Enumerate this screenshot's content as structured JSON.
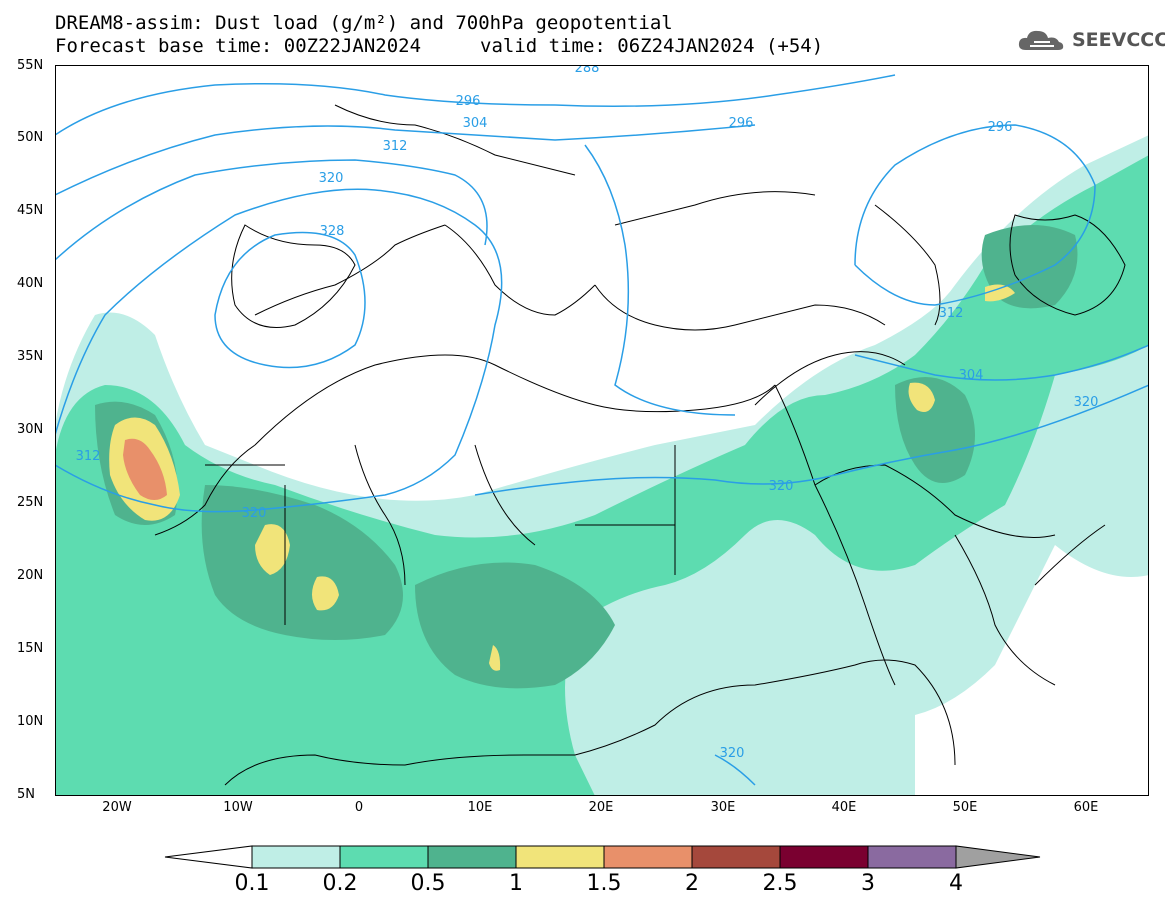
{
  "header": {
    "title": "DREAM8-assim: Dust load (g/m²) and 700hPa geopotential",
    "forecast_base": "Forecast base time: 00Z22JAN2024",
    "valid_time": "valid time: 06Z24JAN2024 (+54)"
  },
  "logo": {
    "text": "SEEVCCC",
    "icon": "cloud-icon"
  },
  "map": {
    "lat_labels": [
      "55N",
      "50N",
      "45N",
      "40N",
      "35N",
      "30N",
      "25N",
      "20N",
      "15N",
      "10N",
      "5N"
    ],
    "lon_labels": [
      "20W",
      "10W",
      "0",
      "10E",
      "20E",
      "30E",
      "40E",
      "50E",
      "60E"
    ],
    "contour_labels": [
      "288",
      "296",
      "304",
      "312",
      "320",
      "328",
      "296",
      "296",
      "304",
      "312",
      "320",
      "312",
      "320"
    ],
    "colors": {
      "0.1": "#bfeee6",
      "0.2": "#5ddcb0",
      "0.5": "#4fb38e",
      "1": "#f1e47a",
      "1.5": "#e8906a",
      "2": "#a5483c",
      "2.5": "#7a0030",
      "3": "#8a6aa0",
      "contour": "#2a9ee6",
      "coast": "#000000"
    }
  },
  "colorbar": {
    "labels": [
      "0.1",
      "0.2",
      "0.5",
      "1",
      "1.5",
      "2",
      "2.5",
      "3",
      "4"
    ],
    "colors": [
      "#bfeee6",
      "#5ddcb0",
      "#4fb38e",
      "#f1e47a",
      "#e8906a",
      "#a5483c",
      "#7a0030",
      "#8a6aa0"
    ],
    "left_arrow_color": "#ffffff",
    "right_arrow_color": "#a0a0a0"
  }
}
